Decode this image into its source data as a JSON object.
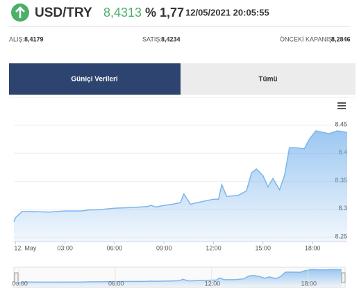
{
  "header": {
    "symbol": "USD/TRY",
    "price": "8,4313",
    "change": "% 1,77",
    "datetime": "12/05/2021 20:05:55"
  },
  "quotes": [
    {
      "label": "ALIŞ:",
      "value": "8,4179"
    },
    {
      "label": "SATIŞ:",
      "value": "8,4234"
    },
    {
      "label": "ÖNCEKİ KAPANIŞ:",
      "value": "8,2846"
    }
  ],
  "tabs": [
    "Güniçi Verileri",
    "Tümü"
  ],
  "chart_data": {
    "type": "area",
    "color": "#7cb5ec",
    "grid": true,
    "x": [
      -0.1,
      0,
      0.4,
      1,
      2,
      3,
      4,
      4.5,
      5,
      6,
      7,
      8,
      8.2,
      8.5,
      9,
      9.5,
      10,
      10.2,
      10.6,
      11,
      12,
      12.3,
      12.5,
      12.8,
      13.5,
      14,
      14.3,
      14.6,
      15,
      15.3,
      15.6,
      16,
      16.3,
      16.6,
      17,
      17.5,
      17.8,
      18.2,
      19,
      19.5,
      20,
      20.1
    ],
    "values": [
      8.2775,
      8.285,
      8.296,
      8.296,
      8.295,
      8.297,
      8.297,
      8.299,
      8.299,
      8.302,
      8.303,
      8.305,
      8.307,
      8.304,
      8.307,
      8.309,
      8.312,
      8.3275,
      8.309,
      8.312,
      8.318,
      8.318,
      8.344,
      8.323,
      8.325,
      8.333,
      8.365,
      8.372,
      8.36,
      8.34,
      8.355,
      8.335,
      8.36,
      8.41,
      8.41,
      8.408,
      8.425,
      8.44,
      8.435,
      8.44,
      8.438,
      8.437
    ],
    "xlim": [
      -0.1,
      20.1
    ],
    "ylim": [
      8.2425,
      8.45
    ],
    "xticks": [
      {
        "value": 0,
        "label": "12. May"
      },
      {
        "value": 3,
        "label": "03:00"
      },
      {
        "value": 6,
        "label": "06:00"
      },
      {
        "value": 9,
        "label": "09:00"
      },
      {
        "value": 12,
        "label": "12:00"
      },
      {
        "value": 15,
        "label": "15:00"
      },
      {
        "value": 18,
        "label": "18:00"
      }
    ],
    "yticks": [
      8.25,
      8.3,
      8.35,
      8.4,
      8.45
    ],
    "navigator_xticks": [
      {
        "value": 0,
        "label": "00:00"
      },
      {
        "value": 6,
        "label": "06:00"
      },
      {
        "value": 12,
        "label": "12:00"
      },
      {
        "value": 18,
        "label": "18:00"
      }
    ]
  }
}
